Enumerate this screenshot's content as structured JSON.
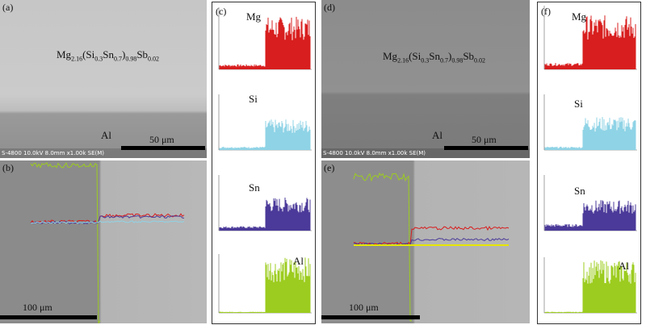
{
  "figure": {
    "left": {
      "panel_a": {
        "label": "(a)",
        "compound": {
          "base": "Mg",
          "s1": "2.16",
          "open": "(Si",
          "s2": "0.3",
          "mid": "Sn",
          "s3": "0.7",
          "close": ")",
          "s4": "0.98",
          "tail": "Sb",
          "s5": "0.02"
        },
        "substrate_label": "Al",
        "scale_label": "50 μm",
        "info": "S-4800 10.0kV 8.0mm x1.00k SE(M)"
      },
      "panel_b": {
        "label": "(b)",
        "scale_label": "100 μm"
      },
      "panel_c": {
        "label": "(c)",
        "elements": [
          "Mg",
          "Si",
          "Sn",
          "Al"
        ]
      }
    },
    "right": {
      "panel_d": {
        "label": "(d)",
        "compound": {
          "base": "Mg",
          "s1": "2.16",
          "open": "(Si",
          "s2": "0.3",
          "mid": "Sn",
          "s3": "0.7",
          "close": ")",
          "s4": "0.98",
          "tail": "Sb",
          "s5": "0.02"
        },
        "substrate_label": "Al",
        "scale_label": "50 μm",
        "info": "S-4800 10.0kV 8.0mm x1.00k SE(M)"
      },
      "panel_e": {
        "label": "(e)",
        "scale_label": "100 μm"
      },
      "panel_f": {
        "label": "(f)",
        "elements": [
          "Mg",
          "Si",
          "Sn",
          "Al"
        ]
      }
    }
  },
  "colors": {
    "mg": "#d81e1e",
    "si": "#8fd3e6",
    "sn": "#4b3a99",
    "al": "#9ccc1f",
    "sem_light": "#c9c9c9",
    "sem_dark": "#8d8d8d"
  }
}
